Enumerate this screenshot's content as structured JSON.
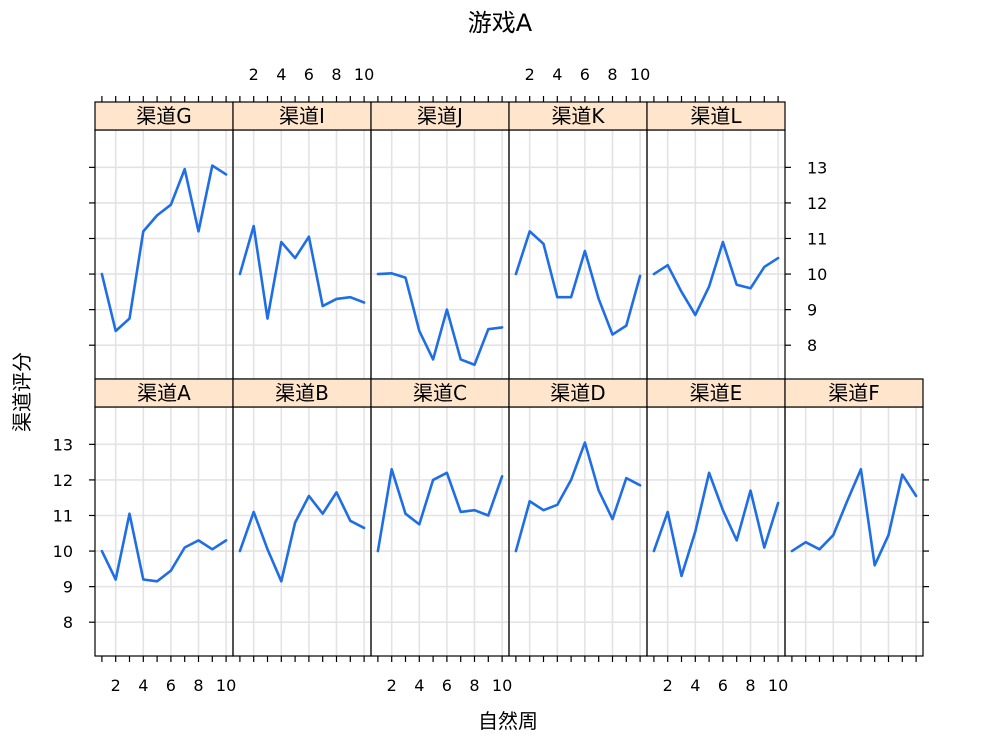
{
  "chart_data": {
    "type": "line",
    "title": "游戏A",
    "xlabel": "自然周",
    "ylabel": "渠道评分",
    "x": [
      1,
      2,
      3,
      4,
      5,
      6,
      7,
      8,
      9,
      10
    ],
    "xticks": [
      2,
      4,
      6,
      8,
      10
    ],
    "xlim": [
      0.5,
      10.5
    ],
    "yticks": [
      8,
      9,
      10,
      11,
      12,
      13
    ],
    "ylim": [
      7.05,
      14.05
    ],
    "grid": true,
    "layout": "trellis 6 columns x 2 rows",
    "colors": {
      "line": "#1f6ee6",
      "strip": "#ffe5cc",
      "grid": "#e3e3e3"
    },
    "panels": [
      {
        "label": "渠道G",
        "values": [
          10.0,
          8.4,
          8.75,
          11.2,
          11.65,
          11.95,
          12.95,
          11.2,
          13.05,
          12.8
        ]
      },
      {
        "label": "渠道I",
        "values": [
          10.0,
          11.35,
          8.75,
          10.9,
          10.45,
          11.05,
          9.1,
          9.3,
          9.35,
          9.2
        ]
      },
      {
        "label": "渠道J",
        "values": [
          10.0,
          10.02,
          9.9,
          8.4,
          7.6,
          9.0,
          7.6,
          7.45,
          8.45,
          8.5
        ]
      },
      {
        "label": "渠道K",
        "values": [
          10.0,
          11.2,
          10.85,
          9.35,
          9.35,
          10.65,
          9.3,
          8.3,
          8.55,
          9.95
        ]
      },
      {
        "label": "渠道L",
        "values": [
          10.0,
          10.25,
          9.5,
          8.85,
          9.65,
          10.9,
          9.7,
          9.6,
          10.2,
          10.45
        ]
      },
      {
        "label": "渠道A",
        "values": [
          10.0,
          9.2,
          11.05,
          9.2,
          9.15,
          9.45,
          10.1,
          10.3,
          10.05,
          10.3
        ]
      },
      {
        "label": "渠道B",
        "values": [
          10.0,
          11.1,
          10.05,
          9.15,
          10.8,
          11.55,
          11.05,
          11.65,
          10.85,
          10.65
        ]
      },
      {
        "label": "渠道C",
        "values": [
          10.0,
          12.3,
          11.05,
          10.75,
          12.0,
          12.2,
          11.1,
          11.15,
          11.0,
          12.1
        ]
      },
      {
        "label": "渠道D",
        "values": [
          10.0,
          11.4,
          11.15,
          11.3,
          12.0,
          13.05,
          11.7,
          10.9,
          12.05,
          11.85
        ]
      },
      {
        "label": "渠道E",
        "values": [
          10.0,
          11.1,
          9.3,
          10.55,
          12.2,
          11.15,
          10.3,
          11.7,
          10.1,
          11.35
        ]
      },
      {
        "label": "渠道F",
        "values": [
          10.0,
          10.25,
          10.05,
          10.45,
          11.4,
          12.3,
          9.6,
          10.45,
          12.15,
          11.55
        ]
      }
    ]
  }
}
